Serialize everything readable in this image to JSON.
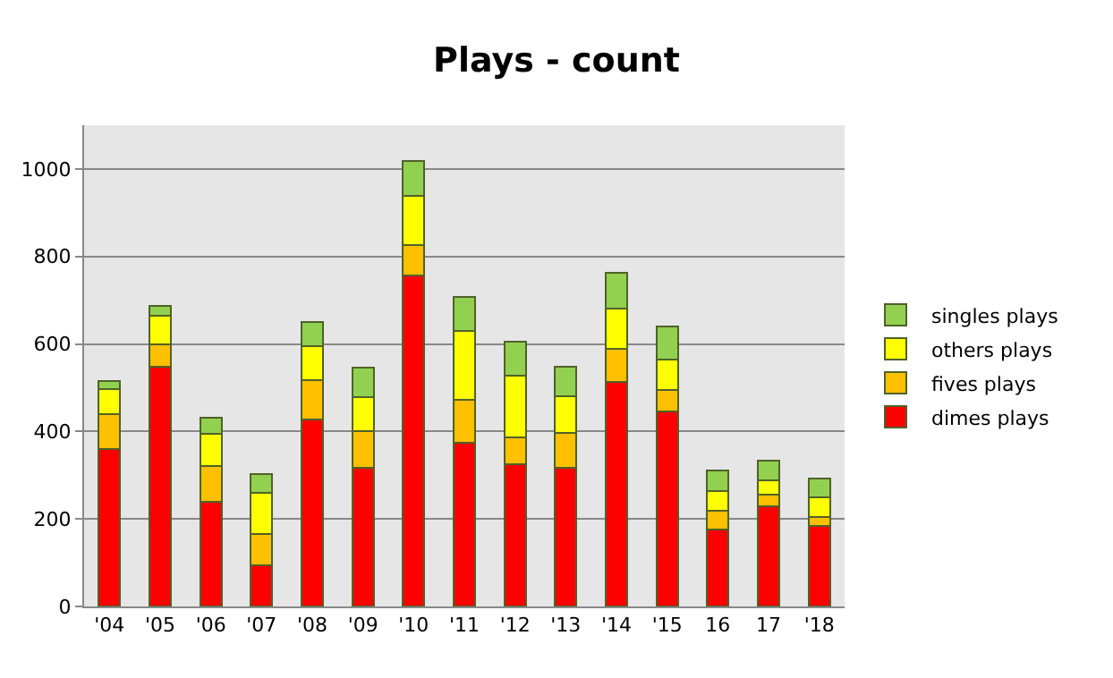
{
  "chart_data": {
    "type": "bar",
    "title": "Plays - count",
    "stacked": true,
    "categories": [
      "'04",
      "'05",
      "'06",
      "'07",
      "'08",
      "'09",
      "'10",
      "'11",
      "'12",
      "'13",
      "'14",
      "'15",
      "16",
      "17",
      "'18"
    ],
    "series": [
      {
        "name": "dimes plays",
        "color": "#ff0000",
        "values": [
          360,
          548,
          240,
          95,
          428,
          317,
          757,
          375,
          325,
          316,
          513,
          445,
          176,
          230,
          185
        ]
      },
      {
        "name": "fives plays",
        "color": "#ffc000",
        "values": [
          80,
          52,
          82,
          70,
          90,
          83,
          70,
          98,
          62,
          81,
          75,
          50,
          42,
          25,
          20
        ]
      },
      {
        "name": "others plays",
        "color": "#ffff00",
        "values": [
          57,
          65,
          73,
          95,
          77,
          78,
          111,
          157,
          140,
          83,
          92,
          70,
          45,
          33,
          45
        ]
      },
      {
        "name": "singles plays",
        "color": "#92d050",
        "values": [
          18,
          23,
          37,
          42,
          55,
          67,
          80,
          78,
          78,
          68,
          83,
          75,
          47,
          45,
          42
        ]
      }
    ],
    "ylim": [
      0,
      1100
    ],
    "yticks": [
      0,
      200,
      400,
      600,
      800,
      1000
    ],
    "grid": "y",
    "legend": "right"
  }
}
